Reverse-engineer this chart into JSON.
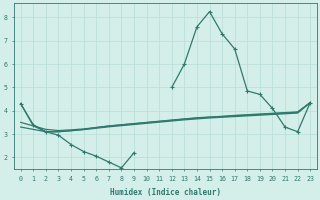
{
  "xlabel": "Humidex (Indice chaleur)",
  "x_values": [
    0,
    1,
    2,
    3,
    4,
    5,
    6,
    7,
    8,
    9,
    10,
    11,
    12,
    13,
    14,
    15,
    16,
    17,
    18,
    19,
    20,
    21,
    22,
    23
  ],
  "line1_y": [
    4.3,
    3.4,
    3.1,
    2.95,
    2.55,
    2.25,
    2.05,
    1.8,
    1.55,
    2.2,
    null,
    null,
    null,
    null,
    null,
    null,
    null,
    null,
    null,
    null,
    null,
    null,
    null,
    null
  ],
  "line2_y": [
    null,
    null,
    null,
    null,
    null,
    null,
    null,
    null,
    null,
    null,
    null,
    null,
    5.0,
    6.0,
    7.6,
    8.25,
    7.3,
    6.65,
    4.85,
    4.7,
    4.1,
    3.3,
    3.1,
    4.35
  ],
  "line3_y": [
    4.3,
    3.35,
    3.1,
    3.1,
    3.15,
    3.2,
    3.28,
    3.35,
    3.4,
    3.45,
    3.5,
    3.55,
    3.6,
    3.65,
    3.7,
    3.73,
    3.76,
    3.8,
    3.83,
    3.86,
    3.89,
    3.92,
    3.95,
    4.35
  ],
  "line4_y": [
    3.5,
    3.35,
    3.2,
    3.15,
    3.18,
    3.22,
    3.28,
    3.34,
    3.39,
    3.44,
    3.49,
    3.54,
    3.59,
    3.64,
    3.68,
    3.72,
    3.75,
    3.78,
    3.81,
    3.84,
    3.87,
    3.9,
    3.93,
    4.35
  ],
  "line5_y": [
    3.3,
    3.2,
    3.1,
    3.1,
    3.14,
    3.19,
    3.25,
    3.31,
    3.36,
    3.41,
    3.46,
    3.51,
    3.56,
    3.61,
    3.65,
    3.69,
    3.72,
    3.75,
    3.78,
    3.81,
    3.84,
    3.87,
    3.9,
    4.35
  ],
  "color": "#2e7b6e",
  "bg_color": "#d4eeea",
  "grid_color": "#b8ddd8",
  "ylim": [
    1.5,
    8.6
  ],
  "xlim": [
    -0.5,
    23.5
  ],
  "yticks": [
    2,
    3,
    4,
    5,
    6,
    7,
    8
  ],
  "xticks": [
    0,
    1,
    2,
    3,
    4,
    5,
    6,
    7,
    8,
    9,
    10,
    11,
    12,
    13,
    14,
    15,
    16,
    17,
    18,
    19,
    20,
    21,
    22,
    23
  ]
}
